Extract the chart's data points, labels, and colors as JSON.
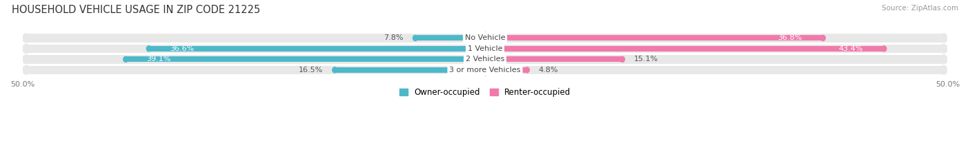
{
  "title": "HOUSEHOLD VEHICLE USAGE IN ZIP CODE 21225",
  "source": "Source: ZipAtlas.com",
  "categories": [
    "No Vehicle",
    "1 Vehicle",
    "2 Vehicles",
    "3 or more Vehicles"
  ],
  "owner_values": [
    7.8,
    36.6,
    39.1,
    16.5
  ],
  "renter_values": [
    36.8,
    43.4,
    15.1,
    4.8
  ],
  "owner_color": "#4db8c8",
  "renter_color": "#f07aaa",
  "xlim": [
    -50,
    50
  ],
  "legend_owner": "Owner-occupied",
  "legend_renter": "Renter-occupied",
  "title_fontsize": 10.5,
  "source_fontsize": 7.5,
  "label_fontsize": 8,
  "category_fontsize": 8,
  "bar_height": 0.52,
  "fig_width": 14.06,
  "fig_height": 2.33,
  "background_color": "#ffffff",
  "bar_background_color": "#e8e8e8",
  "bg_bar_height": 0.82
}
